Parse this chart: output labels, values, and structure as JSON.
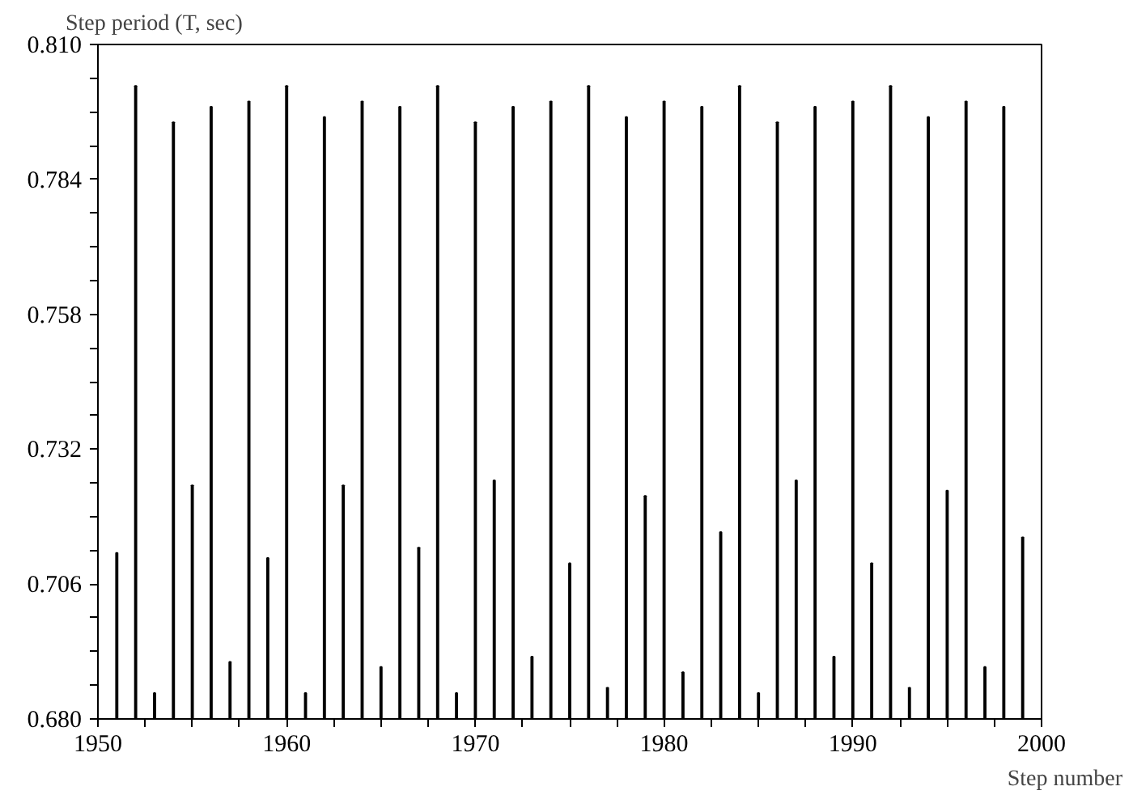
{
  "chart_data": {
    "type": "bar",
    "xlabel": "Step number",
    "ylabel": "Step period (T, sec)",
    "x": [
      1951,
      1952,
      1953,
      1954,
      1955,
      1956,
      1957,
      1958,
      1959,
      1960,
      1961,
      1962,
      1963,
      1964,
      1965,
      1966,
      1967,
      1968,
      1969,
      1970,
      1971,
      1972,
      1973,
      1974,
      1975,
      1976,
      1977,
      1978,
      1979,
      1980,
      1981,
      1982,
      1983,
      1984,
      1985,
      1986,
      1987,
      1988,
      1989,
      1990,
      1991,
      1992,
      1993,
      1994,
      1995,
      1996,
      1997,
      1998,
      1999
    ],
    "values": [
      0.712,
      0.802,
      0.685,
      0.795,
      0.725,
      0.798,
      0.691,
      0.799,
      0.711,
      0.802,
      0.685,
      0.796,
      0.725,
      0.799,
      0.69,
      0.798,
      0.713,
      0.802,
      0.685,
      0.795,
      0.726,
      0.798,
      0.692,
      0.799,
      0.71,
      0.802,
      0.686,
      0.796,
      0.723,
      0.799,
      0.689,
      0.798,
      0.716,
      0.802,
      0.685,
      0.795,
      0.726,
      0.798,
      0.692,
      0.799,
      0.71,
      0.802,
      0.686,
      0.796,
      0.724,
      0.799,
      0.69,
      0.798,
      0.715
    ],
    "color": "#000000",
    "xlim": [
      1950,
      2000
    ],
    "xticks": [
      1950,
      {
        "value": 1952.5,
        "label": null
      },
      {
        "value": 1955,
        "label": null
      },
      {
        "value": 1957.5,
        "label": null
      },
      1960,
      {
        "value": 1962.5,
        "label": null
      },
      {
        "value": 1965,
        "label": null
      },
      {
        "value": 1967.5,
        "label": null
      },
      1970,
      {
        "value": 1972.5,
        "label": null
      },
      {
        "value": 1975,
        "label": null
      },
      {
        "value": 1977.5,
        "label": null
      },
      1980,
      {
        "value": 1982.5,
        "label": null
      },
      {
        "value": 1985,
        "label": null
      },
      {
        "value": 1987.5,
        "label": null
      },
      1990,
      {
        "value": 1992.5,
        "label": null
      },
      {
        "value": 1995,
        "label": null
      },
      {
        "value": 1997.5,
        "label": null
      },
      2000
    ],
    "ylim": [
      0.68,
      0.81
    ],
    "yticks": [
      {
        "value": 0.68,
        "label": "0.680"
      },
      {
        "value": 0.6865,
        "label": null
      },
      {
        "value": 0.693,
        "label": null
      },
      {
        "value": 0.6995,
        "label": null
      },
      {
        "value": 0.706,
        "label": "0.706"
      },
      {
        "value": 0.7125,
        "label": null
      },
      {
        "value": 0.719,
        "label": null
      },
      {
        "value": 0.7255,
        "label": null
      },
      {
        "value": 0.732,
        "label": "0.732"
      },
      {
        "value": 0.7385,
        "label": null
      },
      {
        "value": 0.745,
        "label": null
      },
      {
        "value": 0.7515,
        "label": null
      },
      {
        "value": 0.758,
        "label": "0.758"
      },
      {
        "value": 0.7645,
        "label": null
      },
      {
        "value": 0.771,
        "label": null
      },
      {
        "value": 0.7775,
        "label": null
      },
      {
        "value": 0.784,
        "label": "0.784"
      },
      {
        "value": 0.7905,
        "label": null
      },
      {
        "value": 0.797,
        "label": null
      },
      {
        "value": 0.8035,
        "label": null
      },
      {
        "value": 0.81,
        "label": "0.810"
      }
    ],
    "grid": false
  }
}
